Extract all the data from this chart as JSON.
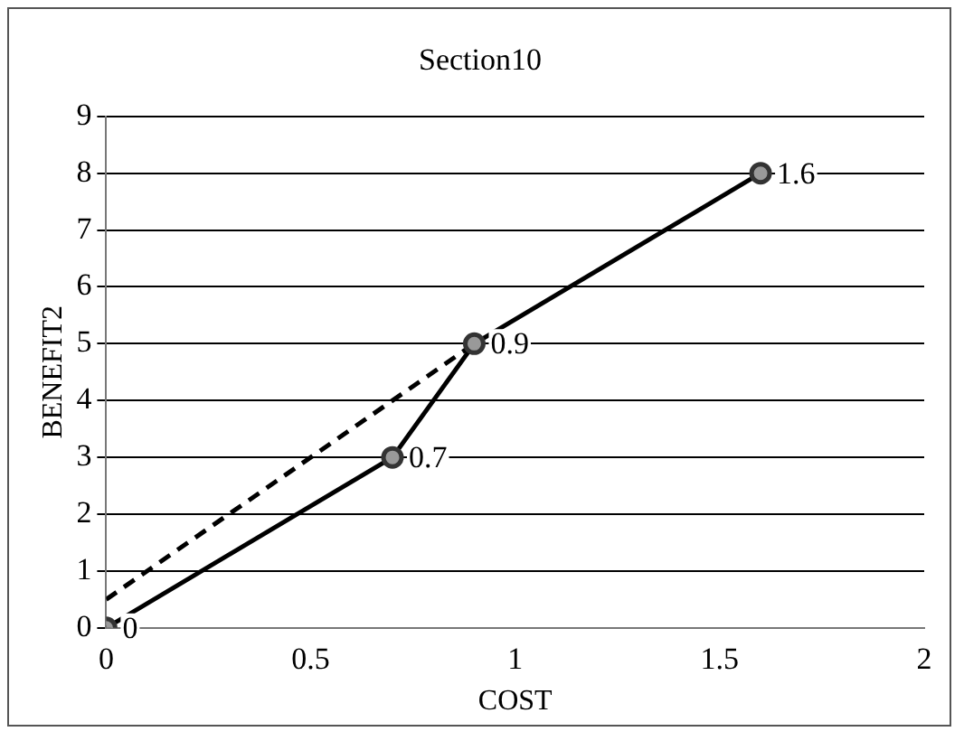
{
  "chart_data": {
    "type": "line",
    "title": "Section10",
    "xlabel": "COST",
    "ylabel": "BENEFIT2",
    "xlim": [
      0,
      2
    ],
    "xticks": [
      0,
      0.5,
      1,
      1.5,
      2
    ],
    "ylim": [
      0,
      9
    ],
    "yticks": [
      0,
      1,
      2,
      3,
      4,
      5,
      6,
      7,
      8,
      9
    ],
    "grid": "y",
    "legend": false,
    "annotations": [
      {
        "text": "0",
        "x": 0,
        "y": 0
      },
      {
        "text": "0.7",
        "x": 0.7,
        "y": 3
      },
      {
        "text": "0.9",
        "x": 0.9,
        "y": 5
      },
      {
        "text": "1.6",
        "x": 1.6,
        "y": 8
      }
    ],
    "series": [
      {
        "x": [
          0,
          0.7,
          0.9,
          1.6
        ],
        "values": [
          0,
          3,
          5,
          8
        ],
        "color": "#000000",
        "marker": "circle",
        "line_style": "solid"
      },
      {
        "x": [
          0,
          0.9
        ],
        "values": [
          0.5,
          5
        ],
        "color": "#000000",
        "marker": "none",
        "line_style": "dashed"
      }
    ]
  }
}
